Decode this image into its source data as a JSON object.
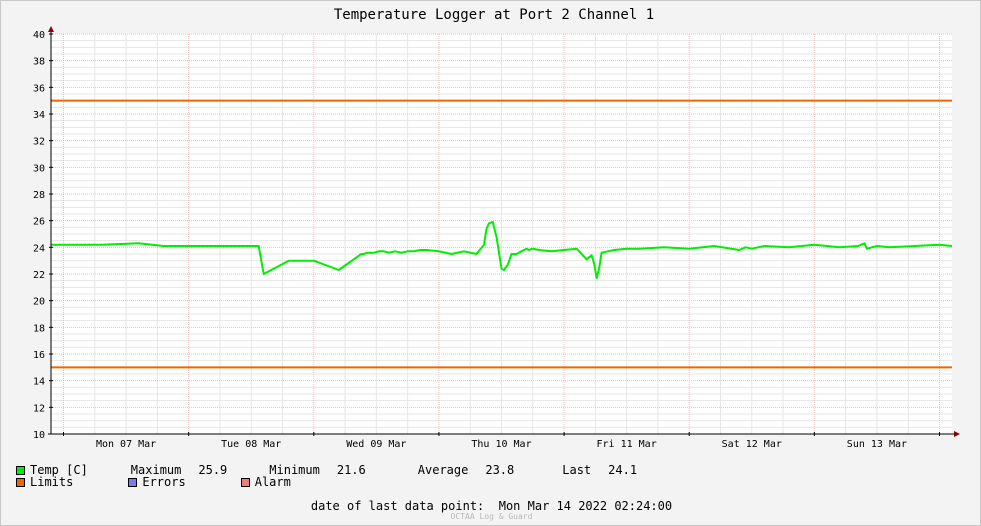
{
  "chart_data": {
    "type": "line",
    "title": "Temperature Logger at Port 2 Channel 1",
    "xlabel": "",
    "ylabel": "",
    "ylim": [
      10,
      40
    ],
    "yticks": [
      10,
      12,
      14,
      16,
      18,
      20,
      22,
      24,
      26,
      28,
      30,
      32,
      34,
      36,
      38,
      40
    ],
    "x_categories": [
      "Mon 07 Mar",
      "Tue 08 Mar",
      "Wed 09 Mar",
      "Thu 10 Mar",
      "Fri 11 Mar",
      "Sat 12 Mar",
      "Sun 13 Mar"
    ],
    "x_range_days": [
      -0.1,
      7.1
    ],
    "grid": true,
    "legend_placement": "bottom-left",
    "series": [
      {
        "name": "Temp [C]",
        "color": "#00ee00",
        "x_days": [
          -0.1,
          0,
          0.3,
          0.6,
          0.8,
          1.0,
          1.12,
          1.14,
          1.17,
          1.22,
          1.3,
          1.36,
          1.42,
          1.46,
          1.48,
          1.52,
          1.56,
          1.6,
          1.8,
          2.0,
          2.2,
          2.38,
          2.4,
          2.43,
          2.46,
          2.48,
          2.52,
          2.56,
          2.6,
          2.65,
          2.7,
          2.75,
          2.8,
          2.85,
          2.9,
          3.0,
          3.1,
          3.2,
          3.3,
          3.36,
          3.38,
          3.4,
          3.43,
          3.46,
          3.5,
          3.52,
          3.55,
          3.58,
          3.62,
          3.66,
          3.7,
          3.72,
          3.75,
          3.8,
          3.9,
          4.0,
          4.1,
          4.18,
          4.22,
          4.24,
          4.26,
          4.28,
          4.3,
          4.35,
          4.4,
          4.5,
          4.6,
          4.8,
          5.0,
          5.2,
          5.4,
          5.45,
          5.5,
          5.6,
          5.8,
          6.0,
          6.2,
          6.35,
          6.4,
          6.42,
          6.5,
          6.6,
          6.8,
          7.0,
          7.1
        ],
        "values": [
          24.2,
          24.2,
          24.2,
          24.3,
          24.1,
          24.1,
          24.1,
          24.1,
          24.1,
          24.1,
          24.1,
          24.1,
          24.1,
          24.1,
          24.1,
          24.1,
          24.1,
          22.0,
          23.0,
          23.0,
          22.3,
          23.5,
          23.5,
          23.6,
          23.6,
          23.6,
          23.7,
          23.7,
          23.6,
          23.7,
          23.6,
          23.7,
          23.7,
          23.8,
          23.8,
          23.7,
          23.5,
          23.7,
          23.5,
          24.2,
          25.4,
          25.8,
          25.9,
          24.8,
          22.4,
          22.3,
          22.7,
          23.5,
          23.5,
          23.7,
          23.9,
          23.8,
          23.9,
          23.8,
          23.7,
          23.8,
          23.9,
          23.1,
          23.4,
          22.8,
          21.7,
          22.4,
          23.6,
          23.7,
          23.8,
          23.9,
          23.9,
          24.0,
          23.9,
          24.1,
          23.8,
          24.0,
          23.9,
          24.1,
          24.0,
          24.2,
          24.0,
          24.1,
          24.3,
          23.9,
          24.1,
          24.0,
          24.1,
          24.2,
          24.1
        ]
      },
      {
        "name": "Limits",
        "color": "#ee6600",
        "hlines": [
          35,
          15
        ]
      }
    ]
  },
  "legend": {
    "temp_label": "Temp [C]",
    "max_label": "Maximum",
    "max_value": "25.9",
    "min_label": "Minimum",
    "min_value": "21.6",
    "avg_label": "Average",
    "avg_value": "23.8",
    "last_label": "Last",
    "last_value": "24.1",
    "limits_label": "Limits",
    "errors_label": "Errors",
    "alarm_label": "Alarm",
    "colors": {
      "temp": "#00ee00",
      "limits": "#ee6600",
      "errors": "#7b7bf0",
      "alarm": "#f07b7b"
    }
  },
  "footer": {
    "date_label": "date of last data point:",
    "date_value": "Mon Mar 14 2022 02:24:00",
    "watermark": "OCTAA Log & Guard"
  }
}
